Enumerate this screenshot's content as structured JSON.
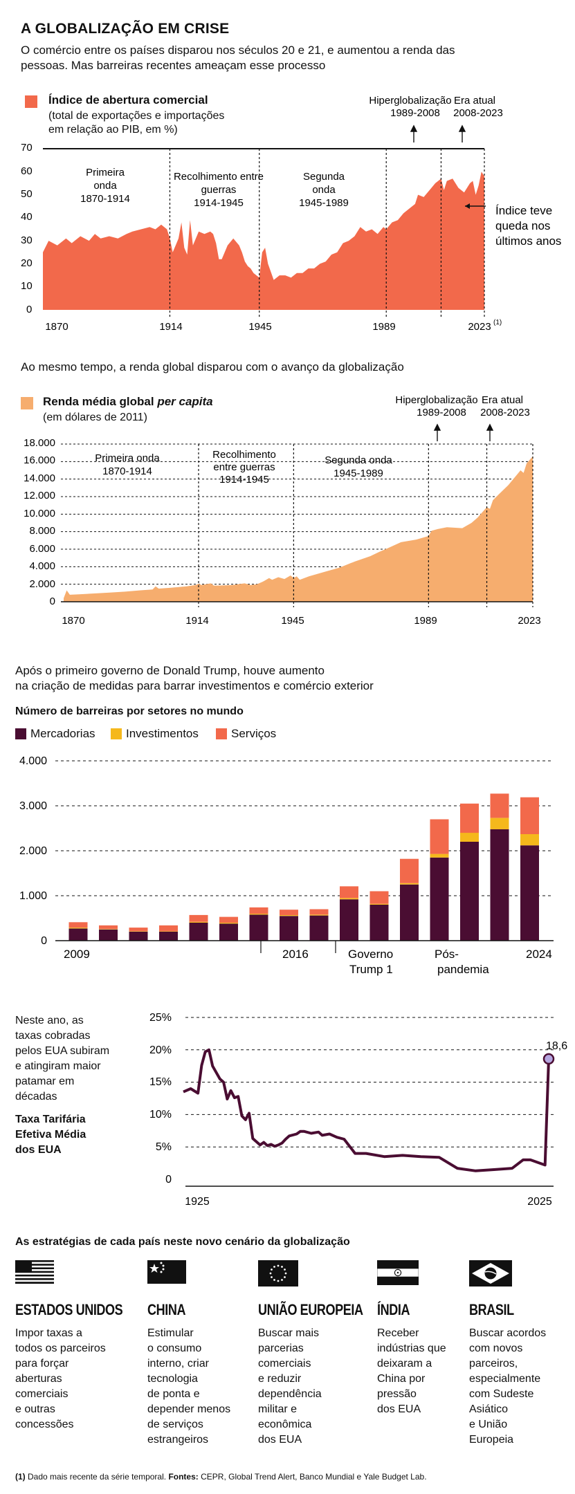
{
  "header": {
    "title": "A GLOBALIZAÇÃO EM CRISE",
    "subtitle": "O comércio entre os países disparou nos séculos 20 e 21, e aumentou a renda das pessoas. Mas barreiras recentes ameaçam esse processo"
  },
  "colors": {
    "orange": "#f2694b",
    "peach": "#f6ad6e",
    "wine": "#4a0d32",
    "yellow": "#f5b81c",
    "service": "#f2694b",
    "dot": "#b5a6e0"
  },
  "chart1": {
    "legend_title": "Índice de abertura comercial",
    "legend_sub1": "(total de exportações e importações",
    "legend_sub2": "em relação ao PIB, em %)",
    "y_ticks": [
      "70",
      "60",
      "50",
      "40",
      "30",
      "20",
      "10",
      "0"
    ],
    "x_ticks": [
      "1870",
      "1914",
      "1945",
      "1989",
      "2023"
    ],
    "x_sup": "(1)",
    "periods": [
      {
        "l1": "Primeira",
        "l2": "onda",
        "l3": "1870-1914"
      },
      {
        "l1": "Recolhimento entre",
        "l2": "guerras",
        "l3": "1914-1945"
      },
      {
        "l1": "Segunda",
        "l2": "onda",
        "l3": "1945-1989"
      }
    ],
    "hyper_l1": "Hiperglobalização",
    "hyper_l2": "1989-2008",
    "era_l1": "Era atual",
    "era_l2": "2008-2023",
    "annot_l1": "Índice teve",
    "annot_l2": "queda nos",
    "annot_l3": "últimos anos"
  },
  "chart2": {
    "intro": "Ao mesmo tempo, a renda global disparou com o avanço da globalização",
    "legend_title_a": "Renda média global ",
    "legend_title_b": "per capita",
    "legend_sub": "(em dólares de 2011)",
    "y_ticks": [
      "18.000",
      "16.000",
      "14.000",
      "12.000",
      "10.000",
      "8.000",
      "6.000",
      "4.000",
      "2.000",
      "0"
    ],
    "x_ticks": [
      "1870",
      "1914",
      "1945",
      "1989",
      "2023"
    ],
    "periods": [
      {
        "l1": "Primeira onda",
        "l2": "1870-1914"
      },
      {
        "l1": "Recolhimento",
        "l2": "entre guerras",
        "l3": "1914-1945"
      },
      {
        "l1": "Segunda onda",
        "l2": "1945-1989"
      }
    ],
    "hyper_l1": "Hiperglobalização",
    "hyper_l2": "1989-2008",
    "era_l1": "Era atual",
    "era_l2": "2008-2023"
  },
  "chart3": {
    "intro_l1": "Após o primeiro governo de Donald Trump, houve aumento",
    "intro_l2": "na criação de medidas para barrar investimentos e comércio exterior",
    "title": "Número de barreiras por setores no mundo",
    "legend": [
      "Mercadorias",
      "Investimentos",
      "Serviços"
    ],
    "y_ticks": [
      "4.000",
      "3.000",
      "2.000",
      "1.000",
      "0"
    ],
    "x_labels": {
      "y2009": "2009",
      "y2016": "2016",
      "trump_l1": "Governo",
      "trump_l2": "Trump 1",
      "pos_l1": "Pós-",
      "pos_l2": "pandemia",
      "y2024": "2024"
    }
  },
  "chart4": {
    "side_l1": "Neste ano, as",
    "side_l2": "taxas cobradas",
    "side_l3": "pelos EUA subiram",
    "side_l4": "e atingiram maior",
    "side_l5": "patamar em",
    "side_l6": "décadas",
    "title_l1": "Taxa Tarifária",
    "title_l2": "Efetiva Média",
    "title_l3": "dos EUA",
    "y_ticks": [
      "25%",
      "20%",
      "15%",
      "10%",
      "5%",
      "0"
    ],
    "x_ticks": [
      "1925",
      "2025"
    ],
    "last_value_label": "18,6"
  },
  "strategies": {
    "title": "As estratégias de cada país neste novo cenário da globalização",
    "countries": [
      {
        "name": "ESTADOS UNIDOS",
        "flag": "usa-flag",
        "text": [
          "Impor taxas a",
          "todos os parceiros",
          "para forçar",
          "aberturas",
          "comerciais",
          "e outras",
          "concessões"
        ]
      },
      {
        "name": "CHINA",
        "flag": "china-flag",
        "text": [
          "Estimular",
          "o consumo",
          "interno, criar",
          "tecnologia",
          "de ponta e",
          "depender menos",
          "de serviços",
          "estrangeiros"
        ]
      },
      {
        "name": "UNIÃO EUROPEIA",
        "flag": "eu-flag",
        "text": [
          "Buscar mais",
          "parcerias",
          "comerciais",
          "e reduzir",
          "dependência",
          "militar e",
          "econômica",
          "dos EUA"
        ]
      },
      {
        "name": "ÍNDIA",
        "flag": "india-flag",
        "text": [
          "Receber",
          "indústrias que",
          "deixaram a",
          "China por",
          "pressão",
          "dos EUA"
        ]
      },
      {
        "name": "BRASIL",
        "flag": "brazil-flag",
        "text": [
          "Buscar acordos",
          "com novos",
          "parceiros,",
          "especialmente",
          "com Sudeste",
          "Asiático",
          "e União",
          "Europeia"
        ]
      }
    ]
  },
  "footnote": {
    "mark": "(1)",
    "text": " Dado mais recente da série temporal. ",
    "sources_label": "Fontes:",
    "sources": " CEPR, Global Trend Alert, Banco Mundial e Yale Budget Lab."
  },
  "chart_data": [
    {
      "type": "area",
      "title": "Índice de abertura comercial",
      "ylabel": "% do PIB",
      "ylim": [
        0,
        70
      ],
      "grid": false,
      "series": [
        {
          "name": "Índice de abertura comercial",
          "x": [
            1870,
            1872,
            1875,
            1878,
            1880,
            1883,
            1886,
            1888,
            1890,
            1893,
            1896,
            1899,
            1901,
            1904,
            1907,
            1909,
            1911,
            1913,
            1914,
            1915,
            1917,
            1918,
            1919,
            1920,
            1921,
            1922,
            1924,
            1926,
            1928,
            1929,
            1930,
            1931,
            1932,
            1934,
            1936,
            1938,
            1939,
            1940,
            1941,
            1942,
            1943,
            1944,
            1945,
            1946,
            1947,
            1948,
            1950,
            1952,
            1954,
            1956,
            1958,
            1960,
            1962,
            1964,
            1966,
            1968,
            1970,
            1972,
            1974,
            1976,
            1978,
            1980,
            1982,
            1984,
            1986,
            1988,
            1989,
            1991,
            1993,
            1995,
            1997,
            1999,
            2000,
            2002,
            2004,
            2006,
            2008,
            2009,
            2010,
            2012,
            2014,
            2016,
            2018,
            2019,
            2020,
            2021,
            2022,
            2023
          ],
          "values": [
            25,
            30,
            28,
            31,
            29,
            32,
            30,
            33,
            31,
            32,
            31,
            33,
            34,
            35,
            36,
            35,
            37,
            35,
            31,
            25,
            31,
            38,
            27,
            24,
            39,
            28,
            34,
            33,
            34,
            33,
            29,
            22,
            22,
            28,
            31,
            28,
            25,
            21,
            19,
            18,
            16,
            15,
            14,
            25,
            27,
            20,
            13,
            15,
            15,
            14,
            16,
            16,
            18,
            18,
            20,
            21,
            24,
            25,
            29,
            30,
            32,
            36,
            34,
            35,
            33,
            36,
            35,
            38,
            39,
            42,
            44,
            46,
            50,
            49,
            52,
            55,
            57,
            52,
            56,
            57,
            53,
            51,
            55,
            56,
            50,
            54,
            60,
            58
          ]
        }
      ]
    },
    {
      "type": "area",
      "title": "Renda média global per capita",
      "ylabel": "dólares de 2011",
      "ylim": [
        0,
        18000
      ],
      "grid": true,
      "series": [
        {
          "name": "Renda média global per capita",
          "x": [
            1870,
            1871,
            1872,
            1875,
            1880,
            1885,
            1890,
            1895,
            1899,
            1900,
            1901,
            1905,
            1910,
            1913,
            1914,
            1915,
            1918,
            1919,
            1920,
            1925,
            1929,
            1931,
            1933,
            1935,
            1937,
            1938,
            1940,
            1942,
            1944,
            1945,
            1946,
            1947,
            1950,
            1955,
            1960,
            1965,
            1970,
            1973,
            1975,
            1980,
            1985,
            1989,
            1990,
            1992,
            1995,
            2000,
            2003,
            2005,
            2008,
            2009,
            2010,
            2012,
            2015,
            2019,
            2020,
            2021,
            2023
          ],
          "values": [
            400,
            1300,
            800,
            850,
            950,
            1050,
            1150,
            1300,
            1400,
            1750,
            1500,
            1600,
            1750,
            1900,
            2050,
            1900,
            2100,
            1850,
            1850,
            1900,
            2100,
            1900,
            2000,
            2300,
            2700,
            2500,
            2800,
            2600,
            3000,
            2700,
            2900,
            2500,
            2900,
            3400,
            3900,
            4600,
            5200,
            5700,
            6000,
            6800,
            7100,
            7500,
            8100,
            8300,
            8500,
            8400,
            9000,
            9600,
            10800,
            10600,
            11600,
            12300,
            13300,
            15000,
            14700,
            15800,
            16600
          ]
        }
      ]
    },
    {
      "type": "bar",
      "title": "Número de barreiras por setores no mundo",
      "stacked": true,
      "ylim": [
        0,
        4000
      ],
      "grid": true,
      "categories": [
        "2009",
        "2010",
        "2011",
        "2012",
        "2013",
        "2014",
        "2015",
        "2016",
        "2017",
        "2018",
        "2019",
        "2020",
        "2021",
        "2022",
        "2023",
        "2024"
      ],
      "series": [
        {
          "name": "Mercadorias",
          "values": [
            270,
            250,
            200,
            200,
            400,
            380,
            580,
            550,
            560,
            920,
            800,
            1250,
            1850,
            2200,
            2480,
            2120
          ]
        },
        {
          "name": "Investimentos",
          "values": [
            20,
            10,
            10,
            10,
            20,
            20,
            20,
            20,
            20,
            30,
            20,
            30,
            80,
            200,
            250,
            250
          ]
        },
        {
          "name": "Serviços",
          "values": [
            120,
            80,
            80,
            130,
            150,
            130,
            140,
            120,
            120,
            260,
            280,
            540,
            770,
            650,
            540,
            820
          ]
        }
      ]
    },
    {
      "type": "line",
      "title": "Taxa Tarifária Efetiva Média dos EUA",
      "ylim": [
        0,
        25
      ],
      "grid": true,
      "series": [
        {
          "name": "Taxa Tarifária Efetiva Média dos EUA",
          "x": [
            1925,
            1927,
            1929,
            1930,
            1931,
            1932,
            1933,
            1935,
            1936,
            1937,
            1938,
            1939,
            1940,
            1941,
            1942,
            1943,
            1944,
            1946,
            1947,
            1948,
            1949,
            1950,
            1951,
            1952,
            1953,
            1954,
            1956,
            1957,
            1958,
            1960,
            1962,
            1963,
            1965,
            1967,
            1969,
            1972,
            1975,
            1980,
            1985,
            1990,
            1995,
            2000,
            2005,
            2010,
            2015,
            2018,
            2020,
            2023,
            2024,
            2025
          ],
          "values": [
            13.5,
            14,
            13.3,
            17.6,
            19.7,
            20,
            17.5,
            15.5,
            15,
            12.4,
            13.7,
            12.6,
            12.8,
            9.8,
            9.2,
            10.2,
            6.3,
            5.3,
            5.7,
            5.2,
            5.4,
            5.1,
            5.3,
            5.6,
            6.2,
            6.7,
            7.0,
            7.4,
            7.4,
            7.1,
            7.3,
            6.8,
            7.0,
            6.5,
            6.2,
            4.0,
            4.0,
            3.5,
            3.7,
            3.5,
            3.4,
            1.7,
            1.3,
            1.5,
            1.7,
            3.0,
            3.0,
            2.4,
            2.2,
            18.6
          ]
        }
      ]
    }
  ]
}
